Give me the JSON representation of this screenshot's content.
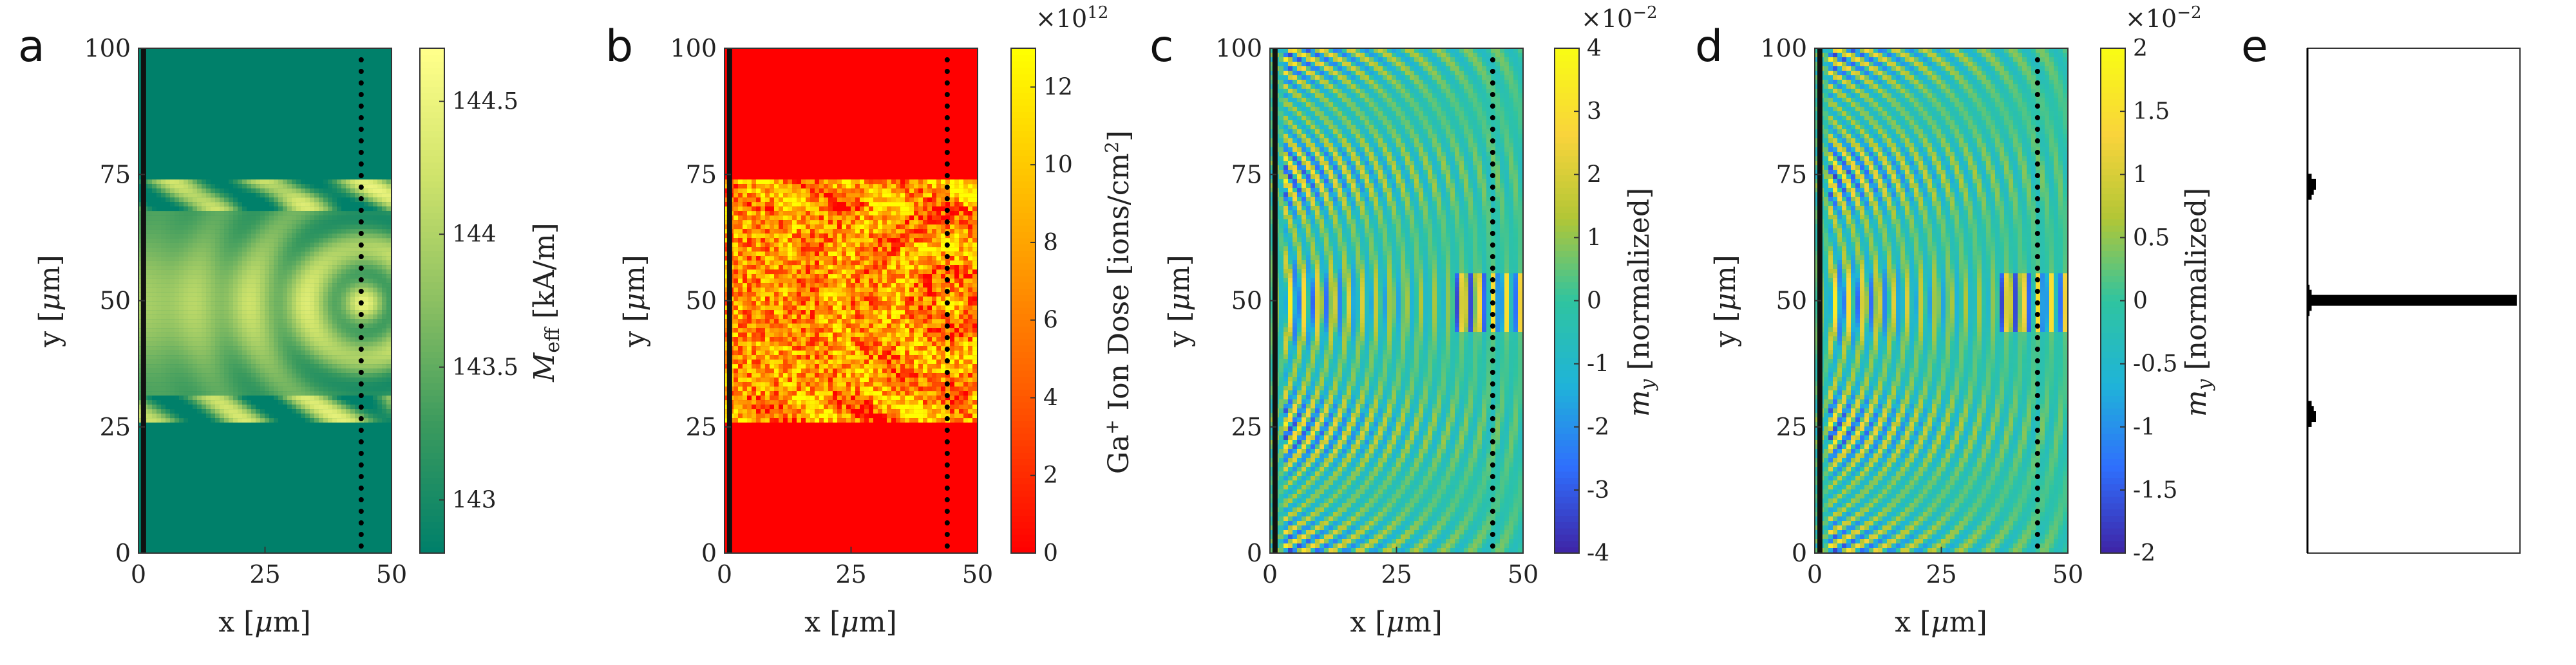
{
  "chart_data": [
    {
      "panel": "a",
      "type": "heatmap",
      "xlabel": "x [μm]",
      "ylabel": "y [μm]",
      "xlim": [
        0,
        50
      ],
      "ylim": [
        0,
        100
      ],
      "xticks": [
        "0",
        "25",
        "50"
      ],
      "yticks": [
        "0",
        "25",
        "50",
        "75",
        "100"
      ],
      "colorbar": {
        "label": "M_eff [kA/m]",
        "ticks": [
          "143",
          "143.5",
          "144",
          "144.5"
        ],
        "range": [
          142.8,
          144.7
        ],
        "exponent": ""
      },
      "colormap": [
        "#00806a",
        "#3a9a5e",
        "#8cc062",
        "#cfe36b",
        "#ffff8a"
      ],
      "background_color": "#00806a",
      "pattern": "lens",
      "lens_region_y": [
        26,
        74
      ],
      "source_line_x": 1,
      "detection_line_x": 44
    },
    {
      "panel": "b",
      "type": "heatmap",
      "xlabel": "x [μm]",
      "ylabel": "y [μm]",
      "xlim": [
        0,
        50
      ],
      "ylim": [
        0,
        100
      ],
      "xticks": [
        "0",
        "25",
        "50"
      ],
      "yticks": [
        "0",
        "25",
        "50",
        "75",
        "100"
      ],
      "colorbar": {
        "label": "Ga+ Ion Dose [ions/cm2]",
        "ticks": [
          "0",
          "2",
          "4",
          "6",
          "8",
          "10",
          "12"
        ],
        "range": [
          0,
          13
        ],
        "exponent": "×10^12"
      },
      "colormap": [
        "#ff0000",
        "#ff6000",
        "#ffb000",
        "#ffff00"
      ],
      "background_color": "#ff0000",
      "pattern": "dose",
      "lens_region_y": [
        26,
        74
      ],
      "source_line_x": 1,
      "detection_line_x": 44
    },
    {
      "panel": "c",
      "type": "heatmap",
      "xlabel": "x [μm]",
      "ylabel": "y [μm]",
      "xlim": [
        0,
        50
      ],
      "ylim": [
        0,
        100
      ],
      "xticks": [
        "0",
        "25",
        "50"
      ],
      "yticks": [
        "0",
        "25",
        "50",
        "75",
        "100"
      ],
      "colorbar": {
        "label": "m_y [normalized]",
        "ticks": [
          "-4",
          "-3",
          "-2",
          "-1",
          "0",
          "1",
          "2",
          "3",
          "4"
        ],
        "range": [
          -4,
          4
        ],
        "exponent": "×10^-2"
      },
      "colormap": [
        "#3e26a8",
        "#2f6ffd",
        "#1fb4d8",
        "#2fc4a0",
        "#b2c636",
        "#f9d43b",
        "#f9fb15"
      ],
      "background_color": "#2dbfa6",
      "pattern": "wave",
      "source_line_x": 1,
      "detection_line_x": 44
    },
    {
      "panel": "d",
      "type": "heatmap",
      "xlabel": "x [μm]",
      "ylabel": "y [μm]",
      "xlim": [
        0,
        50
      ],
      "ylim": [
        0,
        100
      ],
      "xticks": [
        "0",
        "25",
        "50"
      ],
      "yticks": [
        "0",
        "25",
        "50",
        "75",
        "100"
      ],
      "colorbar": {
        "label": "m_y [normalized]",
        "ticks": [
          "-2",
          "-1.5",
          "-1",
          "-0.5",
          "0",
          "0.5",
          "1",
          "1.5",
          "2"
        ],
        "range": [
          -2,
          2
        ],
        "exponent": "×10^-2"
      },
      "colormap": [
        "#3e26a8",
        "#2f6ffd",
        "#1fb4d8",
        "#2fc4a0",
        "#b2c636",
        "#f9d43b",
        "#f9fb15"
      ],
      "background_color": "#2dbfa6",
      "pattern": "wave",
      "source_line_x": 1,
      "detection_line_x": 44
    },
    {
      "panel": "e",
      "type": "bar",
      "orientation": "horizontal",
      "ylim": [
        0,
        100
      ],
      "xlim": [
        0,
        1
      ],
      "y": [
        26,
        27,
        28,
        29,
        48,
        49,
        50,
        51,
        52,
        71,
        72,
        73,
        74
      ],
      "values": [
        0.02,
        0.04,
        0.03,
        0.02,
        0.01,
        0.02,
        1.0,
        0.02,
        0.01,
        0.02,
        0.03,
        0.04,
        0.02
      ]
    }
  ],
  "labels": {
    "a": "a",
    "b": "b",
    "c": "c",
    "d": "d",
    "e": "e",
    "mu": "μ",
    "x_axis": "x [μm]",
    "y_axis": "y [μm]",
    "x_axis_pre": "x [",
    "y_axis_pre": "y [",
    "axis_post": "m]",
    "meff_M": "M",
    "meff_sub": "eff",
    "meff_unit": " [kA/m]",
    "dose_pre": "Ga",
    "dose_sup": "+",
    "dose_mid": " Ion Dose [ions/cm",
    "dose_sup2": "2",
    "dose_end": "]",
    "my_m": "m",
    "my_sub": "y",
    "my_unit": " [normalized]",
    "exp_times": "×10",
    "exp_12": "12",
    "exp_m2": "−2"
  }
}
